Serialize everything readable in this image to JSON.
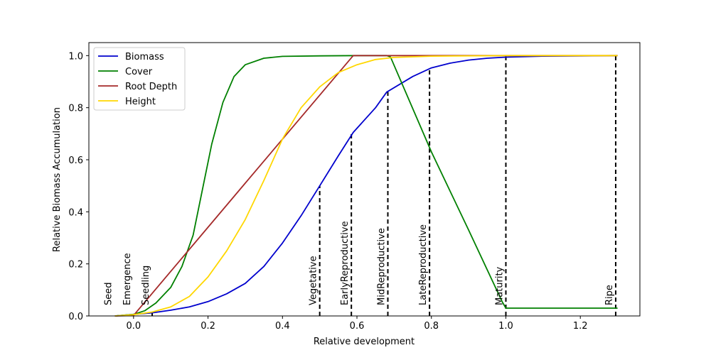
{
  "chart_data": {
    "type": "line",
    "xlabel": "Relative development",
    "ylabel": "Relative Biomass Accumulation",
    "xlim": [
      -0.12,
      1.36
    ],
    "ylim": [
      0.0,
      1.05
    ],
    "xticks": [
      "0.0",
      "0.2",
      "0.4",
      "0.6",
      "0.8",
      "1.0",
      "1.2"
    ],
    "yticks": [
      "0.0",
      "0.2",
      "0.4",
      "0.6",
      "0.8",
      "1.0"
    ],
    "legend_position": "top-left",
    "series": [
      {
        "name": "Biomass",
        "color": "#0000cd",
        "x": [
          -0.05,
          0.0,
          0.05,
          0.1,
          0.15,
          0.2,
          0.25,
          0.3,
          0.35,
          0.4,
          0.45,
          0.5,
          0.55,
          0.59,
          0.65,
          0.68,
          0.75,
          0.8,
          0.85,
          0.9,
          0.95,
          1.0,
          1.1,
          1.2,
          1.3
        ],
        "y": [
          0.0,
          0.006,
          0.012,
          0.022,
          0.035,
          0.055,
          0.085,
          0.125,
          0.19,
          0.28,
          0.385,
          0.5,
          0.615,
          0.705,
          0.8,
          0.86,
          0.92,
          0.953,
          0.971,
          0.983,
          0.99,
          0.994,
          0.998,
          0.999,
          1.0
        ]
      },
      {
        "name": "Cover",
        "color": "#008000",
        "x": [
          -0.05,
          0.0,
          0.03,
          0.06,
          0.1,
          0.13,
          0.16,
          0.19,
          0.21,
          0.24,
          0.27,
          0.3,
          0.35,
          0.4,
          0.5,
          0.6,
          0.68,
          0.69,
          0.8,
          0.9,
          0.99,
          1.0,
          1.1,
          1.2,
          1.3
        ],
        "y": [
          0.0,
          0.006,
          0.02,
          0.05,
          0.11,
          0.19,
          0.31,
          0.52,
          0.66,
          0.82,
          0.92,
          0.965,
          0.99,
          0.997,
          0.999,
          1.0,
          1.0,
          0.995,
          0.63,
          0.33,
          0.055,
          0.03,
          0.03,
          0.03,
          0.03
        ]
      },
      {
        "name": "Root Depth",
        "color": "#a52a2a",
        "x": [
          -0.05,
          0.0,
          0.3,
          0.59,
          0.68,
          1.0,
          1.3
        ],
        "y": [
          0.0,
          0.002,
          0.51,
          1.0,
          1.0,
          1.0,
          1.0
        ]
      },
      {
        "name": "Height",
        "color": "#ffd700",
        "x": [
          -0.05,
          0.0,
          0.05,
          0.1,
          0.15,
          0.2,
          0.25,
          0.3,
          0.35,
          0.4,
          0.45,
          0.5,
          0.55,
          0.6,
          0.65,
          0.7,
          0.8,
          1.0,
          1.3
        ],
        "y": [
          0.0,
          0.005,
          0.015,
          0.035,
          0.075,
          0.15,
          0.25,
          0.37,
          0.52,
          0.68,
          0.8,
          0.88,
          0.935,
          0.965,
          0.985,
          0.993,
          0.998,
          1.0,
          1.0
        ]
      }
    ],
    "phases": [
      {
        "label": "Seed",
        "x": -0.05,
        "top": null
      },
      {
        "label": "Emergence",
        "x": 0.0,
        "top": 0.005
      },
      {
        "label": "Seedling",
        "x": 0.05,
        "top": 0.012
      },
      {
        "label": "Vegetative",
        "x": 0.5,
        "top": 0.5
      },
      {
        "label": "EarlyReproductive",
        "x": 0.585,
        "top": 0.7
      },
      {
        "label": "MidReproductive",
        "x": 0.683,
        "top": 0.86
      },
      {
        "label": "LateReproductive",
        "x": 0.795,
        "top": 0.95
      },
      {
        "label": "Maturity",
        "x": 1.0,
        "top": 1.0
      },
      {
        "label": "Ripe",
        "x": 1.295,
        "top": 1.0
      }
    ]
  }
}
